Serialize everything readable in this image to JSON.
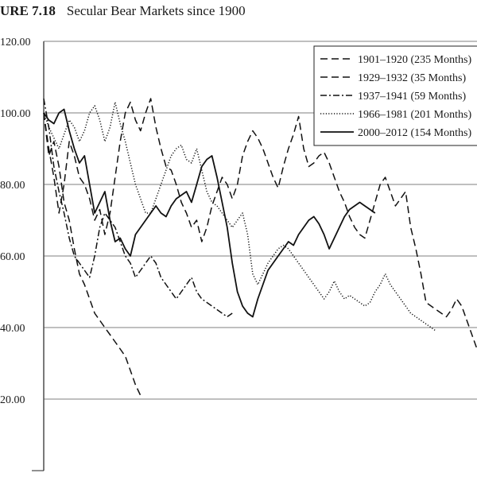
{
  "figure": {
    "label": "URE 7.18",
    "title": "Secular Bear Markets since 1900"
  },
  "chart_data": {
    "type": "line",
    "title": "Secular Bear Markets since 1900",
    "xlabel": "",
    "ylabel": "",
    "ylim": [
      0,
      120
    ],
    "yticks": [
      "120.00",
      "100.00",
      "80.00",
      "60.00",
      "40.00",
      "20.00"
    ],
    "grid": true,
    "legend_position": "top-right",
    "series": [
      {
        "name": "1901–1920 (235 Months)",
        "style": "dashed",
        "values": [
          100,
          90,
          82,
          72,
          80,
          92,
          88,
          82,
          80,
          76,
          70,
          73,
          66,
          72,
          82,
          92,
          100,
          103,
          98,
          95,
          100,
          104,
          96,
          90,
          85,
          84,
          80,
          75,
          72,
          68,
          70,
          64,
          68,
          74,
          78,
          82,
          80,
          76,
          80,
          88,
          92,
          95,
          93,
          90,
          86,
          82,
          79,
          85,
          90,
          94,
          99,
          90,
          85,
          86,
          88,
          89,
          86,
          82,
          78,
          75,
          71,
          68,
          66,
          65,
          70,
          75,
          80,
          82,
          78,
          74,
          76,
          78,
          68,
          62,
          55,
          47,
          46,
          45,
          44,
          43,
          45,
          48,
          46,
          42,
          38,
          34
        ]
      },
      {
        "name": "1929–1932 (35 Months)",
        "style": "dashed",
        "values": [
          100,
          88,
          92,
          85,
          75,
          70,
          62,
          55,
          52,
          48,
          44,
          42,
          40,
          38,
          36,
          34,
          32,
          28,
          24,
          21
        ]
      },
      {
        "name": "1937–1941 (59 Months)",
        "style": "dashdot",
        "values": [
          104,
          96,
          85,
          78,
          72,
          65,
          60,
          58,
          56,
          54,
          60,
          68,
          72,
          70,
          68,
          64,
          60,
          58,
          54,
          56,
          58,
          60,
          58,
          54,
          52,
          50,
          48,
          50,
          52,
          54,
          50,
          48,
          47,
          46,
          45,
          44,
          43,
          44
        ]
      },
      {
        "name": "1966–1981 (201 Months)",
        "style": "dotted",
        "values": [
          100,
          96,
          93,
          90,
          94,
          98,
          96,
          92,
          95,
          100,
          102,
          98,
          92,
          96,
          103,
          97,
          92,
          86,
          80,
          76,
          72,
          72,
          76,
          80,
          84,
          88,
          90,
          91,
          87,
          86,
          90,
          84,
          78,
          75,
          74,
          72,
          70,
          68,
          70,
          72,
          66,
          55,
          52,
          55,
          58,
          60,
          62,
          63,
          62,
          60,
          58,
          56,
          54,
          52,
          50,
          48,
          50,
          53,
          50,
          48,
          49,
          48,
          47,
          46,
          47,
          50,
          52,
          55,
          52,
          50,
          48,
          46,
          44,
          43,
          42,
          41,
          40,
          39
        ]
      },
      {
        "name": "2000–2012 (154 Months)",
        "style": "solid",
        "values": [
          100,
          98,
          97,
          100,
          101,
          95,
          90,
          86,
          88,
          80,
          72,
          75,
          78,
          70,
          64,
          65,
          62,
          60,
          66,
          68,
          70,
          72,
          74,
          72,
          71,
          74,
          76,
          77,
          78,
          75,
          80,
          85,
          87,
          88,
          82,
          75,
          68,
          58,
          50,
          46,
          44,
          43,
          48,
          52,
          56,
          58,
          60,
          62,
          64,
          63,
          66,
          68,
          70,
          71,
          69,
          66,
          62,
          65,
          68,
          71,
          73,
          74,
          75,
          74,
          73,
          72
        ]
      }
    ]
  }
}
